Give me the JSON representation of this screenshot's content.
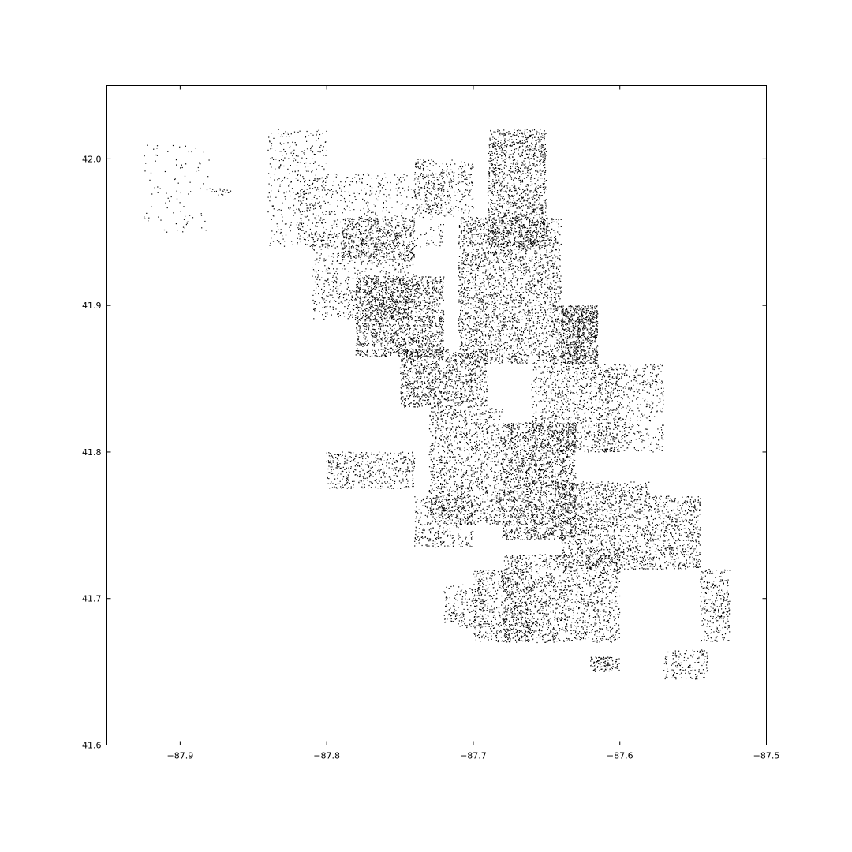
{
  "chart_data": {
    "type": "scatter",
    "title": "",
    "xlabel": "",
    "ylabel": "",
    "xlim": [
      -87.95,
      -87.5
    ],
    "ylim": [
      41.6,
      42.05
    ],
    "grid": false,
    "marker_color": "#000000",
    "x_ticks": [
      {
        "value": -87.9,
        "label": "−87.9"
      },
      {
        "value": -87.8,
        "label": "−87.8"
      },
      {
        "value": -87.7,
        "label": "−87.7"
      },
      {
        "value": -87.6,
        "label": "−87.6"
      },
      {
        "value": -87.5,
        "label": "−87.5"
      }
    ],
    "y_ticks": [
      {
        "value": 41.6,
        "label": "41.6"
      },
      {
        "value": 41.7,
        "label": "41.7"
      },
      {
        "value": 41.8,
        "label": "41.8"
      },
      {
        "value": 41.9,
        "label": "41.9"
      },
      {
        "value": 42.0,
        "label": "42.0"
      }
    ],
    "point_regions": [
      {
        "lon": [
          -87.69,
          -87.65
        ],
        "lat": [
          41.94,
          42.02
        ],
        "n": 1400
      },
      {
        "lon": [
          -87.71,
          -87.64
        ],
        "lat": [
          41.86,
          41.96
        ],
        "n": 2600
      },
      {
        "lon": [
          -87.64,
          -87.615
        ],
        "lat": [
          41.86,
          41.9
        ],
        "n": 900
      },
      {
        "lon": [
          -87.78,
          -87.72
        ],
        "lat": [
          41.865,
          41.92
        ],
        "n": 1700
      },
      {
        "lon": [
          -87.75,
          -87.69
        ],
        "lat": [
          41.83,
          41.87
        ],
        "n": 1100
      },
      {
        "lon": [
          -87.79,
          -87.74
        ],
        "lat": [
          41.93,
          41.96
        ],
        "n": 500
      },
      {
        "lon": [
          -87.81,
          -87.74
        ],
        "lat": [
          41.89,
          41.95
        ],
        "n": 700
      },
      {
        "lon": [
          -87.84,
          -87.8
        ],
        "lat": [
          41.94,
          42.02
        ],
        "n": 350
      },
      {
        "lon": [
          -87.82,
          -87.72
        ],
        "lat": [
          41.94,
          41.99
        ],
        "n": 600
      },
      {
        "lon": [
          -87.74,
          -87.7
        ],
        "lat": [
          41.96,
          42.0
        ],
        "n": 350
      },
      {
        "lon": [
          -87.66,
          -87.6
        ],
        "lat": [
          41.8,
          41.86
        ],
        "n": 900
      },
      {
        "lon": [
          -87.68,
          -87.63
        ],
        "lat": [
          41.74,
          41.82
        ],
        "n": 2000
      },
      {
        "lon": [
          -87.73,
          -87.68
        ],
        "lat": [
          41.75,
          41.83
        ],
        "n": 1200
      },
      {
        "lon": [
          -87.8,
          -87.74
        ],
        "lat": [
          41.775,
          41.8
        ],
        "n": 450
      },
      {
        "lon": [
          -87.74,
          -87.7
        ],
        "lat": [
          41.735,
          41.77
        ],
        "n": 350
      },
      {
        "lon": [
          -87.64,
          -87.58
        ],
        "lat": [
          41.72,
          41.78
        ],
        "n": 1300
      },
      {
        "lon": [
          -87.58,
          -87.545
        ],
        "lat": [
          41.72,
          41.77
        ],
        "n": 600
      },
      {
        "lon": [
          -87.68,
          -87.6
        ],
        "lat": [
          41.67,
          41.73
        ],
        "n": 1500
      },
      {
        "lon": [
          -87.7,
          -87.66
        ],
        "lat": [
          41.67,
          41.72
        ],
        "n": 500
      },
      {
        "lon": [
          -87.72,
          -87.69
        ],
        "lat": [
          41.68,
          41.71
        ],
        "n": 200
      },
      {
        "lon": [
          -87.545,
          -87.525
        ],
        "lat": [
          41.67,
          41.72
        ],
        "n": 300
      },
      {
        "lon": [
          -87.57,
          -87.54
        ],
        "lat": [
          41.645,
          41.665
        ],
        "n": 150
      },
      {
        "lon": [
          -87.62,
          -87.6
        ],
        "lat": [
          41.65,
          41.66
        ],
        "n": 120
      },
      {
        "lon": [
          -87.615,
          -87.57
        ],
        "lat": [
          41.8,
          41.86
        ],
        "n": 500
      },
      {
        "lon": [
          -87.925,
          -87.88
        ],
        "lat": [
          41.95,
          42.01
        ],
        "n": 90
      },
      {
        "lon": [
          -87.88,
          -87.865
        ],
        "lat": [
          41.975,
          41.98
        ],
        "n": 20
      }
    ]
  }
}
